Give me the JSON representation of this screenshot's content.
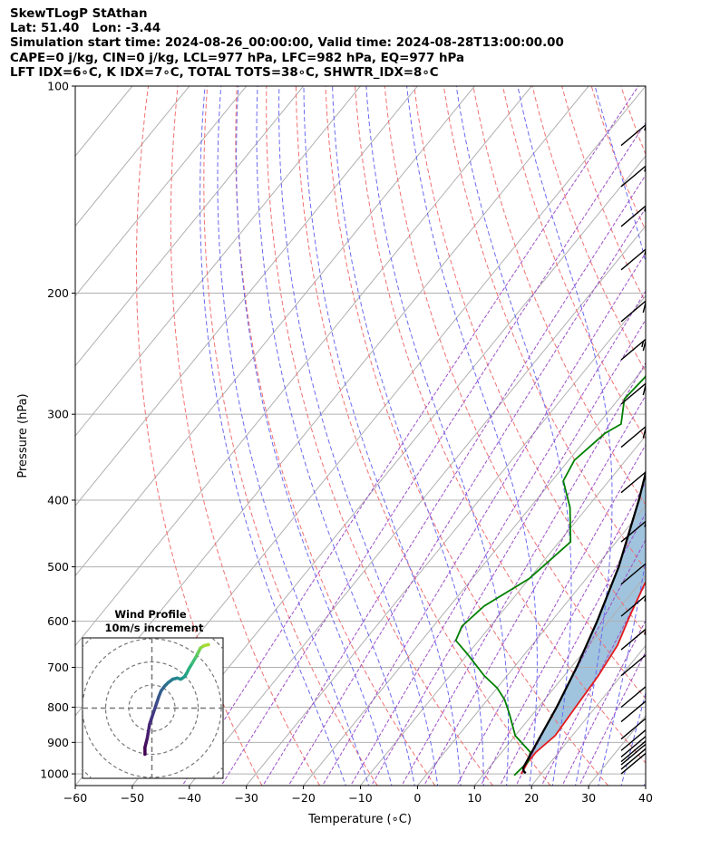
{
  "header": {
    "title": "SkewTLogP StAthan",
    "location": "Lat: 51.40   Lon: -3.44",
    "times": "Simulation start time: 2024-08-26_00:00:00, Valid time: 2024-08-28T13:00:00.00",
    "params": "CAPE=0 j/kg, CIN=0 j/kg, LCL=977 hPa, LFC=982 hPa, EQ=977 hPa",
    "indices": "LFT IDX=6∘C, K IDX=7∘C, TOTAL TOTS=38∘C, SHWTR_IDX=8∘C"
  },
  "chart_data": {
    "type": "line",
    "title": "SkewTLogP StAthan",
    "xlabel": "Temperature (∘C)",
    "ylabel": "Pressure (hPa)",
    "xlim": [
      -60,
      40
    ],
    "ylim": [
      1040,
      100
    ],
    "y_scale": "log",
    "grid": true,
    "x_ticks": [
      "−60",
      "−50",
      "−40",
      "−30",
      "−20",
      "−10",
      "0",
      "10",
      "20",
      "30",
      "40"
    ],
    "y_ticks": [
      "100",
      "200",
      "300",
      "400",
      "500",
      "600",
      "700",
      "800",
      "900",
      "1000"
    ],
    "series": [
      {
        "role": "temperature",
        "color": "#e41a1c",
        "points": [
          [
            16.5,
            1000
          ],
          [
            16.0,
            960
          ],
          [
            16.0,
            930
          ],
          [
            17.0,
            880
          ],
          [
            16.5,
            800
          ],
          [
            16.0,
            720
          ],
          [
            15.0,
            650
          ],
          [
            13.0,
            590
          ],
          [
            11.0,
            530
          ],
          [
            10.0,
            480
          ],
          [
            8.0,
            430
          ],
          [
            5.5,
            390
          ],
          [
            3.0,
            350
          ],
          [
            0,
            310
          ],
          [
            -2.0,
            290
          ],
          [
            -4.5,
            265
          ],
          [
            -6.0,
            250
          ],
          [
            -9.0,
            230
          ],
          [
            -8.5,
            215
          ],
          [
            -7.0,
            205
          ],
          [
            -5.5,
            198
          ],
          [
            -3.0,
            185
          ],
          [
            0,
            170
          ],
          [
            2.0,
            160
          ],
          [
            4.0,
            150
          ],
          [
            8.0,
            132
          ],
          [
            11.0,
            118
          ],
          [
            12.5,
            110
          ],
          [
            13.5,
            100
          ]
        ]
      },
      {
        "role": "dewpoint",
        "color": "#008000",
        "points": [
          [
            15.5,
            1005
          ],
          [
            16.0,
            960
          ],
          [
            15.0,
            930
          ],
          [
            10.0,
            880
          ],
          [
            6.0,
            820
          ],
          [
            3.0,
            780
          ],
          [
            0,
            750
          ],
          [
            -4.0,
            720
          ],
          [
            -10.0,
            670
          ],
          [
            -14.0,
            640
          ],
          [
            -15.0,
            610
          ],
          [
            -14.0,
            570
          ],
          [
            -10.0,
            520
          ],
          [
            -8.0,
            460
          ],
          [
            -13.0,
            410
          ],
          [
            -18.0,
            375
          ],
          [
            -19.0,
            350
          ],
          [
            -17.5,
            320
          ],
          [
            -16.0,
            310
          ],
          [
            -19.0,
            285
          ],
          [
            -18.5,
            265
          ],
          [
            -19.5,
            245
          ],
          [
            -22.0,
            230
          ],
          [
            -23.0,
            210
          ],
          [
            -24.0,
            192
          ],
          [
            -24.5,
            175
          ],
          [
            -25.0,
            163
          ],
          [
            -27.5,
            153
          ],
          [
            -30.5,
            140
          ],
          [
            -32.0,
            130
          ],
          [
            -29.0,
            120
          ],
          [
            -26.0,
            110
          ],
          [
            -23.0,
            100
          ]
        ]
      },
      {
        "role": "parcel",
        "color": "#000000",
        "points": [
          [
            17.2,
            998
          ],
          [
            16.5,
            990
          ],
          [
            16.0,
            980
          ],
          [
            14.8,
            900
          ],
          [
            13.2,
            800
          ],
          [
            11.0,
            700
          ],
          [
            8.0,
            600
          ],
          [
            4.0,
            500
          ],
          [
            -2.0,
            400
          ],
          [
            -10.5,
            300
          ],
          [
            -16.0,
            250
          ],
          [
            -24.0,
            200
          ],
          [
            -31.0,
            170
          ],
          [
            -43.0,
            133
          ],
          [
            -54.0,
            100
          ]
        ]
      }
    ],
    "winds": {
      "shaft_angle_deg": 40,
      "barbs": [
        {
          "p": 1000,
          "full": 1,
          "half": 0
        },
        {
          "p": 985,
          "full": 1,
          "half": 0
        },
        {
          "p": 970,
          "full": 1,
          "half": 0
        },
        {
          "p": 960,
          "full": 1,
          "half": 0
        },
        {
          "p": 945,
          "full": 1,
          "half": 0
        },
        {
          "p": 925,
          "full": 1,
          "half": 0
        },
        {
          "p": 890,
          "full": 1,
          "half": 1
        },
        {
          "p": 840,
          "full": 1,
          "half": 1
        },
        {
          "p": 800,
          "full": 1,
          "half": 1
        },
        {
          "p": 720,
          "full": 1,
          "half": 1
        },
        {
          "p": 660,
          "full": 2,
          "half": 1
        },
        {
          "p": 590,
          "full": 2,
          "half": 1
        },
        {
          "p": 530,
          "full": 2,
          "half": 0
        },
        {
          "p": 460,
          "full": 2,
          "half": 1
        },
        {
          "p": 390,
          "full": 2,
          "half": 1
        },
        {
          "p": 335,
          "full": 3,
          "half": 0
        },
        {
          "p": 290,
          "full": 3,
          "half": 0
        },
        {
          "p": 250,
          "full": 3,
          "half": 1
        },
        {
          "p": 220,
          "full": 3,
          "half": 0
        },
        {
          "p": 185,
          "full": 2,
          "half": 1
        },
        {
          "p": 160,
          "full": 2,
          "half": 1
        },
        {
          "p": 140,
          "full": 2,
          "half": 1
        },
        {
          "p": 122,
          "full": 2,
          "half": 1
        }
      ]
    },
    "hodograph": {
      "title": "Wind Profile",
      "subtitle": "10m/s increment",
      "ring_spacing": 10,
      "points": [
        [
          -3,
          -20
        ],
        [
          -3,
          -17
        ],
        [
          -2.5,
          -15
        ],
        [
          -2,
          -13
        ],
        [
          -1.5,
          -10
        ],
        [
          -1,
          -7
        ],
        [
          0,
          -4
        ],
        [
          1,
          -1
        ],
        [
          2,
          2
        ],
        [
          3,
          5
        ],
        [
          4,
          7.5
        ],
        [
          5.5,
          9.5
        ],
        [
          7,
          11
        ],
        [
          9,
          12.5
        ],
        [
          11,
          13
        ],
        [
          12.5,
          12.5
        ],
        [
          14,
          13.5
        ],
        [
          15,
          15
        ],
        [
          16,
          17
        ],
        [
          17.5,
          19.5
        ],
        [
          19,
          22
        ],
        [
          20,
          24
        ],
        [
          21,
          26
        ],
        [
          22.5,
          27
        ],
        [
          24.5,
          27.5
        ]
      ],
      "colors": [
        "#440154",
        "#45085b",
        "#471164",
        "#481b6d",
        "#472374",
        "#462c7b",
        "#443883",
        "#404387",
        "#3b4e8a",
        "#37598c",
        "#33638d",
        "#2e6d8e",
        "#2a768e",
        "#26818e",
        "#228b8d",
        "#1f948c",
        "#1e9e89",
        "#22a884",
        "#2db27d",
        "#3dbc74",
        "#55c667",
        "#6ece58",
        "#8ad647",
        "#a8db34",
        "#c5e021"
      ]
    }
  }
}
